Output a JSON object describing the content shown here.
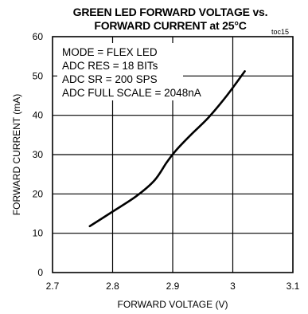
{
  "chart_data": {
    "type": "line",
    "title_line1": "GREEN LED FORWARD VOLTAGE  vs.",
    "title_line2": "FORWARD CURRENT at 25°C",
    "figure_id": "toc15",
    "xlabel": "FORWARD VOLTAGE (V)",
    "ylabel": "FORWARD CURRENT (mA)",
    "xlim": [
      2.7,
      3.1
    ],
    "ylim": [
      0,
      60
    ],
    "x_ticks": [
      "2.7",
      "2.8",
      "2.9",
      "3",
      "3.1"
    ],
    "x_tick_values": [
      2.7,
      2.8,
      2.9,
      3.0,
      3.1
    ],
    "y_ticks": [
      "0",
      "10",
      "20",
      "30",
      "40",
      "50",
      "60"
    ],
    "y_tick_values": [
      0,
      10,
      20,
      30,
      40,
      50,
      60
    ],
    "grid": true,
    "annotations": [
      "MODE = FLEX LED",
      "ADC RES = 18 BITs",
      "ADC SR = 200 SPS",
      "ADC FULL SCALE = 2048nA"
    ],
    "series": [
      {
        "color": "#000000",
        "x": [
          2.762,
          2.8,
          2.84,
          2.87,
          2.89,
          2.905,
          2.93,
          2.96,
          2.99,
          3.02
        ],
        "y": [
          11.8,
          15.5,
          19.5,
          23.5,
          28.0,
          31.0,
          35.0,
          39.5,
          45.0,
          51.2
        ]
      }
    ]
  }
}
